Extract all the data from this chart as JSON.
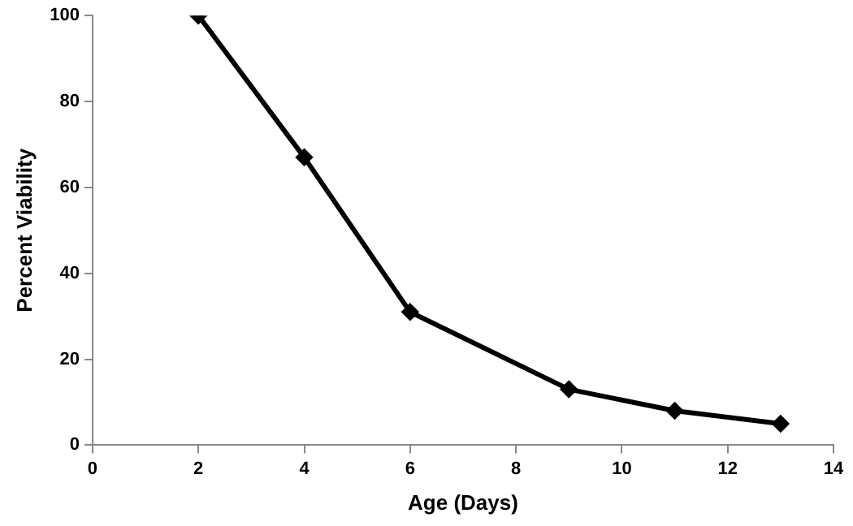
{
  "chart_data": {
    "type": "line",
    "xlabel": "Age (Days)",
    "ylabel": "Percent Viability",
    "x": [
      2,
      4,
      6,
      9,
      11,
      13
    ],
    "series": [
      {
        "color": "#000000",
        "values": [
          100,
          67,
          31,
          13,
          8,
          5
        ]
      }
    ],
    "xlim": [
      0,
      14
    ],
    "xticks": [
      0,
      2,
      4,
      6,
      8,
      10,
      12,
      14
    ],
    "ylim": [
      0,
      100
    ],
    "yticks": [
      0,
      20,
      40,
      60,
      80,
      100
    ],
    "grid": false,
    "legend": false,
    "marker": "diamond",
    "line_style": "solid"
  }
}
